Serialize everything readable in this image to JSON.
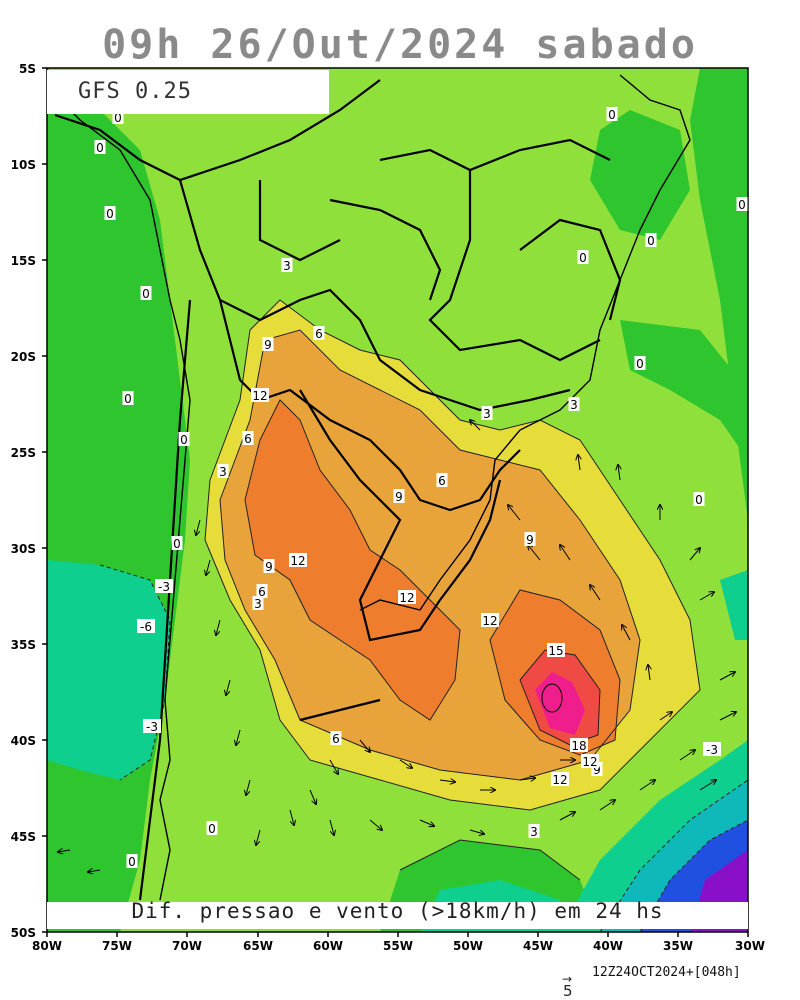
{
  "header": {
    "title": "09h 26/Out/2024 sabado"
  },
  "model_label": "GFS 0.25",
  "caption": "Dif. pressao e vento (>18km/h) em 24 hs",
  "footer": {
    "ref_value": "5",
    "run_info": "12Z24OCT2024+[048h]"
  },
  "axes": {
    "y_labels": [
      "5S",
      "10S",
      "15S",
      "20S",
      "25S",
      "30S",
      "35S",
      "40S",
      "45S",
      "50S"
    ],
    "x_labels": [
      "80W",
      "75W",
      "70W",
      "65W",
      "60W",
      "55W",
      "50W",
      "45W",
      "40W",
      "35W",
      "30W"
    ]
  },
  "contour_labels": [
    "0",
    "0",
    "0",
    "0",
    "0",
    "0",
    "0",
    "0",
    "0",
    "0",
    "0",
    "0",
    "0",
    "0",
    "0",
    "3",
    "3",
    "3",
    "3",
    "3",
    "3",
    "6",
    "6",
    "6",
    "6",
    "6",
    "9",
    "9",
    "9",
    "9",
    "9",
    "12",
    "12",
    "12",
    "12",
    "12",
    "12",
    "15",
    "18",
    "-3",
    "-3",
    "-6",
    "-3"
  ],
  "colors": {
    "bg_green": "#8fe03a",
    "mid_green": "#2fc52f",
    "teal": "#0fcf8f",
    "yellow": "#e6dc3a",
    "light_orange": "#e8a43a",
    "orange": "#ee7e2e",
    "red": "#f04a45",
    "magenta": "#f01e8c",
    "cyan": "#10b9b9",
    "blue": "#2050e0",
    "purple": "#8a10c8"
  }
}
